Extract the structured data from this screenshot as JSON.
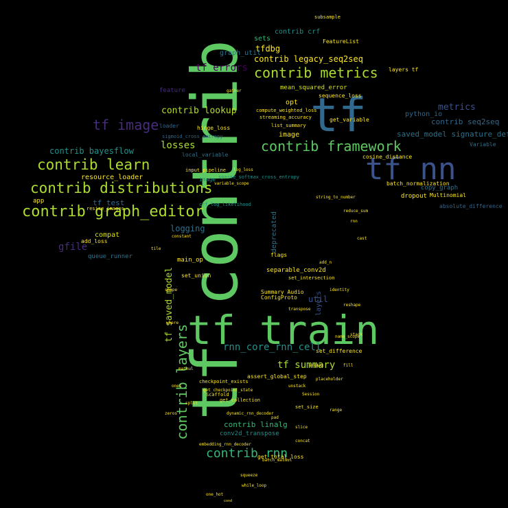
{
  "words": [
    {
      "id": "tf-contrib",
      "text": "tf contrib",
      "color": "#5ec962"
    },
    {
      "id": "tf-train",
      "text": "tf train",
      "color": "#5ec962"
    },
    {
      "id": "tf",
      "text": "tf",
      "color": "#31688e"
    },
    {
      "id": "tf-nn",
      "text": "tf nn",
      "color": "#3b528b"
    },
    {
      "id": "contrib-graph-editor",
      "text": "contrib graph_editor",
      "color": "#addc30"
    },
    {
      "id": "contrib-distributions",
      "text": "contrib distributions",
      "color": "#addc30"
    },
    {
      "id": "contrib-learn",
      "text": "contrib learn",
      "color": "#addc30"
    },
    {
      "id": "contrib-framework",
      "text": "contrib framework",
      "color": "#5ec962"
    },
    {
      "id": "contrib-metrics",
      "text": "contrib metrics",
      "color": "#addc30"
    },
    {
      "id": "tf-image",
      "text": "tf image",
      "color": "#472d7b"
    },
    {
      "id": "contrib-layers",
      "text": "contrib layers",
      "color": "#5ec962"
    },
    {
      "id": "contrib-rnn",
      "text": "contrib rnn",
      "color": "#35b779"
    },
    {
      "id": "tf-summary",
      "text": "tf summary",
      "color": "#addc30"
    },
    {
      "id": "rnn-core-rnn-cell",
      "text": "rnn_core_rnn_cell",
      "color": "#21918c"
    },
    {
      "id": "tf-saved-model",
      "text": "tf saved_model",
      "color": "#addc30"
    },
    {
      "id": "contrib-legacy-seq2seq",
      "text": "contrib legacy_seq2seq",
      "color": "#fde725"
    },
    {
      "id": "tf-errors",
      "text": "tf errors",
      "color": "#440154"
    },
    {
      "id": "contrib-lookup",
      "text": "contrib lookup",
      "color": "#b5de2b"
    },
    {
      "id": "contrib-bayesflow",
      "text": "contrib bayesflow",
      "color": "#21918c"
    },
    {
      "id": "losses",
      "text": "losses",
      "color": "#addc30"
    },
    {
      "id": "metrics",
      "text": "metrics",
      "color": "#3b528b"
    },
    {
      "id": "contrib-seq2seq",
      "text": "contrib seq2seq",
      "color": "#31688e"
    },
    {
      "id": "saved-model-signature-def-utils",
      "text": "saved_model signature_def_utils",
      "color": "#2c728e"
    },
    {
      "id": "tf-test",
      "text": "tf test",
      "color": "#31688e"
    },
    {
      "id": "logging",
      "text": "logging",
      "color": "#2c728e"
    },
    {
      "id": "gfile",
      "text": "gfile",
      "color": "#472d7b"
    },
    {
      "id": "contrib-linalg",
      "text": "contrib linalg",
      "color": "#35b779"
    },
    {
      "id": "contrib-crf",
      "text": "contrib crf",
      "color": "#21918c"
    },
    {
      "id": "tfdbg",
      "text": "tfdbg",
      "color": "#fde725"
    },
    {
      "id": "graph-util",
      "text": "graph_util",
      "color": "#2c728e"
    },
    {
      "id": "resource-loader",
      "text": "resource_loader",
      "color": "#fde725"
    },
    {
      "id": "util",
      "text": "util",
      "color": "#3b528b"
    },
    {
      "id": "compat",
      "text": "compat",
      "color": "#d8e219"
    },
    {
      "id": "queue-runner",
      "text": "queue_runner",
      "color": "#2c728e"
    },
    {
      "id": "python-io",
      "text": "python_io",
      "color": "#31688e"
    },
    {
      "id": "image",
      "text": "image",
      "color": "#fde725"
    },
    {
      "id": "app",
      "text": "app",
      "color": "#fde725"
    },
    {
      "id": "opt",
      "text": "opt",
      "color": "#fde725"
    },
    {
      "id": "sets",
      "text": "sets",
      "color": "#35b779"
    },
    {
      "id": "layers",
      "text": "layers",
      "color": "#3b528b"
    },
    {
      "id": "deprecated",
      "text": "deprecated",
      "color": "#2c728e"
    },
    {
      "id": "mean-squared-error",
      "text": "mean_squared_error",
      "color": "#d8e219"
    },
    {
      "id": "main-op",
      "text": "main_op",
      "color": "#fde725"
    },
    {
      "id": "separable-conv2d",
      "text": "separable_conv2d",
      "color": "#fde725"
    },
    {
      "id": "conv2d-transpose",
      "text": "conv2d_transpose",
      "color": "#21918c"
    },
    {
      "id": "assert-global-step",
      "text": "assert_global_step",
      "color": "#fde725"
    },
    {
      "id": "dropout",
      "text": "dropout",
      "color": "#fde725"
    },
    {
      "id": "copy-graph",
      "text": "copy_graph",
      "color": "#2c728e"
    },
    {
      "id": "absolute-difference",
      "text": "absolute_difference",
      "color": "#31688e"
    },
    {
      "id": "cosine-distance",
      "text": "cosine_distance",
      "color": "#fde725"
    },
    {
      "id": "hinge-loss",
      "text": "hinge_loss",
      "color": "#fde725"
    },
    {
      "id": "local-variable",
      "text": "local_variable",
      "color": "#2c728e"
    },
    {
      "id": "get-variable",
      "text": "get_variable",
      "color": "#fde725"
    },
    {
      "id": "add-loss",
      "text": "add_loss",
      "color": "#fde725"
    },
    {
      "id": "feature",
      "text": "feature",
      "color": "#472d7b"
    },
    {
      "id": "loader",
      "text": "loader",
      "color": "#31688e"
    },
    {
      "id": "featurelist",
      "text": "FeatureList",
      "color": "#fde725"
    },
    {
      "id": "layers-tf",
      "text": "layers tf",
      "color": "#fde725"
    },
    {
      "id": "variable",
      "text": "Variable",
      "color": "#2c728e"
    },
    {
      "id": "set-difference",
      "text": "set_difference",
      "color": "#fde725"
    },
    {
      "id": "get-total-loss",
      "text": "get_total_loss",
      "color": "#fde725"
    },
    {
      "id": "batch-normalization",
      "text": "batch_normalization",
      "color": "#fde725"
    },
    {
      "id": "configproto",
      "text": "ConfigProto",
      "color": "#fde725"
    },
    {
      "id": "subsample",
      "text": "subsample",
      "color": "#fde725"
    },
    {
      "id": "flags",
      "text": "flags",
      "color": "#fde725"
    },
    {
      "id": "set-union",
      "text": "set_union",
      "color": "#fde725"
    },
    {
      "id": "summary-audio",
      "text": "Summary Audio",
      "color": "#fde725"
    },
    {
      "id": "set-intersection",
      "text": "set_intersection",
      "color": "#fde725"
    },
    {
      "id": "image-small",
      "text": "image",
      "color": "#21918c"
    },
    {
      "id": "compute-weighted-loss",
      "text": "compute_weighted_loss",
      "color": "#fde725"
    },
    {
      "id": "sequence-loss",
      "text": "sequence_loss",
      "color": "#fde725"
    },
    {
      "id": "input-pipeline",
      "text": "input_pipeline",
      "color": "#fde725"
    },
    {
      "id": "sigmoid-cross-entropy",
      "text": "sigmoid_cross_entropy",
      "color": "#31688e"
    },
    {
      "id": "softmax-cross-entropy",
      "text": "sparse_softmax_cross_entropy",
      "color": "#21918c"
    },
    {
      "id": "multinomial",
      "text": "Multinomial",
      "color": "#fde725"
    },
    {
      "id": "crf-log-likelihood",
      "text": "crf_log_likelihood",
      "color": "#21918c"
    },
    {
      "id": "streaming-accuracy",
      "text": "streaming_accuracy",
      "color": "#fde725"
    },
    {
      "id": "get-collection",
      "text": "get_collection",
      "color": "#fde725"
    },
    {
      "id": "resize-images",
      "text": "resize_images",
      "color": "#fde725"
    },
    {
      "id": "set-size",
      "text": "set_size",
      "color": "#fde725"
    },
    {
      "id": "list-summary",
      "text": "list_summary",
      "color": "#fde725"
    },
    {
      "id": "checkpoint-exists",
      "text": "checkpoint_exists",
      "color": "#fde725"
    },
    {
      "id": "scaffold",
      "text": "Scaffold",
      "color": "#fde725"
    },
    {
      "id": "embedding-rnn-decoder",
      "text": "embedding_rnn_decoder",
      "color": "#fde725"
    },
    {
      "id": "dynamic-rnn-decoder",
      "text": "dynamic_rnn_decoder",
      "color": "#fde725"
    },
    {
      "id": "get-checkpoint-state",
      "text": "get_checkpoint_state",
      "color": "#fde725"
    },
    {
      "id": "batch-matmul",
      "text": "batch_matmul",
      "color": "#fde725"
    },
    {
      "id": "variable-scope",
      "text": "variable_scope",
      "color": "#fde725"
    },
    {
      "id": "string-to-number",
      "text": "string_to_number",
      "color": "#fde725"
    },
    {
      "id": "reduce-sum",
      "text": "reduce_sum",
      "color": "#fde725"
    },
    {
      "id": "log-loss",
      "text": "log_loss",
      "color": "#fde725"
    },
    {
      "id": "gather",
      "text": "gather",
      "color": "#fde725"
    },
    {
      "id": "cast",
      "text": "cast",
      "color": "#fde725"
    },
    {
      "id": "tile",
      "text": "tile",
      "color": "#fde725"
    },
    {
      "id": "where",
      "text": "where",
      "color": "#fde725"
    },
    {
      "id": "rnn",
      "text": "rnn",
      "color": "#fde725"
    },
    {
      "id": "name-scope",
      "text": "name_scope",
      "color": "#fde725"
    },
    {
      "id": "argmax",
      "text": "argmax",
      "color": "#fde725"
    },
    {
      "id": "squeeze",
      "text": "squeeze",
      "color": "#fde725"
    },
    {
      "id": "shape",
      "text": "shape",
      "color": "#fde725"
    },
    {
      "id": "concat",
      "text": "concat",
      "color": "#fde725"
    },
    {
      "id": "placeholder",
      "text": "placeholder",
      "color": "#fde725"
    },
    {
      "id": "session",
      "text": "Session",
      "color": "#fde725"
    },
    {
      "id": "constant",
      "text": "constant",
      "color": "#fde725"
    },
    {
      "id": "one-hot",
      "text": "one_hot",
      "color": "#fde725"
    },
    {
      "id": "cond",
      "text": "cond",
      "color": "#fde725"
    },
    {
      "id": "while-loop",
      "text": "while_loop",
      "color": "#fde725"
    },
    {
      "id": "identity",
      "text": "identity",
      "color": "#fde725"
    },
    {
      "id": "reshape",
      "text": "reshape",
      "color": "#fde725"
    },
    {
      "id": "transpose",
      "text": "transpose",
      "color": "#fde725"
    },
    {
      "id": "matmul",
      "text": "matmul",
      "color": "#fde725"
    },
    {
      "id": "add-n",
      "text": "add_n",
      "color": "#fde725"
    },
    {
      "id": "pad",
      "text": "pad",
      "color": "#fde725"
    },
    {
      "id": "slice",
      "text": "slice",
      "color": "#fde725"
    },
    {
      "id": "split",
      "text": "split",
      "color": "#fde725"
    },
    {
      "id": "stack",
      "text": "stack",
      "color": "#fde725"
    },
    {
      "id": "unstack",
      "text": "unstack",
      "color": "#fde725"
    },
    {
      "id": "range",
      "text": "range",
      "color": "#fde725"
    },
    {
      "id": "fill",
      "text": "fill",
      "color": "#fde725"
    },
    {
      "id": "zeros",
      "text": "zeros",
      "color": "#fde725"
    },
    {
      "id": "ones",
      "text": "ones",
      "color": "#fde725"
    }
  ]
}
